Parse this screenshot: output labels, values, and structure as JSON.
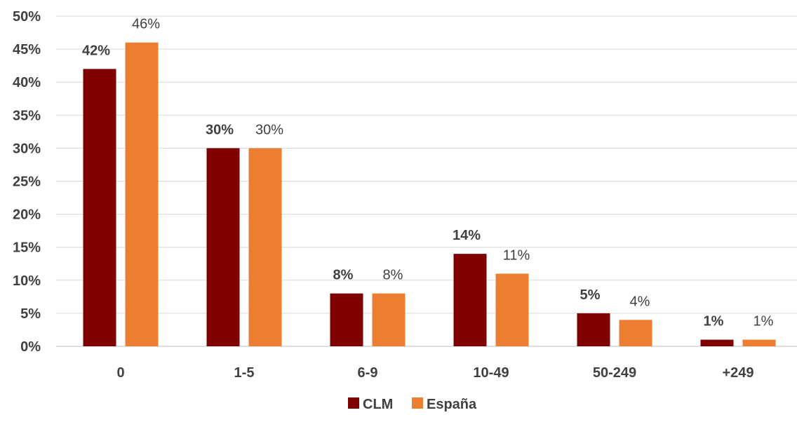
{
  "chart_data": {
    "type": "bar",
    "title": "",
    "xlabel": "",
    "ylabel": "",
    "categories": [
      "0",
      "1-5",
      "6-9",
      "10-49",
      "50-249",
      "+249"
    ],
    "series": [
      {
        "name": "CLM",
        "values": [
          42,
          30,
          8,
          14,
          5,
          1
        ],
        "labels": [
          "42%",
          "30%",
          "8%",
          "14%",
          "5%",
          "1%"
        ],
        "color": "#7f0000",
        "label_bold": true
      },
      {
        "name": "España",
        "values": [
          46,
          30,
          8,
          11,
          4,
          1
        ],
        "labels": [
          "46%",
          "30%",
          "8%",
          "11%",
          "4%",
          "1%"
        ],
        "color": "#ed7d31",
        "label_bold": false
      }
    ],
    "ylim": [
      0,
      50
    ],
    "yticks": [
      0,
      5,
      10,
      15,
      20,
      25,
      30,
      35,
      40,
      45,
      50
    ],
    "ytick_labels": [
      "0%",
      "5%",
      "10%",
      "15%",
      "20%",
      "25%",
      "30%",
      "35%",
      "40%",
      "45%",
      "50%"
    ],
    "grid": true,
    "legend_position": "bottom"
  }
}
